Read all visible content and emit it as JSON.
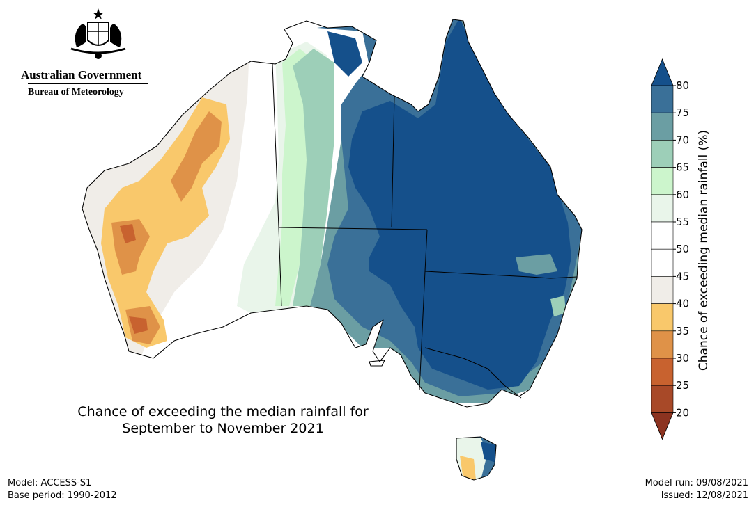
{
  "logo": {
    "government": "Australian Government",
    "agency": "Bureau of Meteorology",
    "icon": "coat-of-arms-icon"
  },
  "map": {
    "title_line1": "Chance of exceeding the median rainfall for",
    "title_line2": "September to November 2021",
    "region": "Australia"
  },
  "colorbar": {
    "label": "Chance of exceeding median rainfall (%)",
    "ticks": [
      "80",
      "75",
      "70",
      "65",
      "60",
      "55",
      "50",
      "45",
      "40",
      "35",
      "30",
      "25",
      "20"
    ],
    "colors": {
      "gt80": "#15508b",
      "75-80": "#3a7098",
      "70-75": "#6b9ea3",
      "65-70": "#9dcfb8",
      "60-65": "#ccf5cc",
      "55-60": "#e9f5ea",
      "50-55": "#ffffff",
      "45-50": "#ffffff",
      "40-45": "#f0ede8",
      "35-40": "#f9c86b",
      "30-35": "#df9248",
      "25-30": "#c8622f",
      "20-25": "#a84928",
      "lt20": "#8c3320"
    }
  },
  "footer": {
    "model": "Model: ACCESS-S1",
    "base_period": "Base period: 1990-2012",
    "model_run": "Model run: 09/08/2021",
    "issued": "Issued: 12/08/2021"
  }
}
